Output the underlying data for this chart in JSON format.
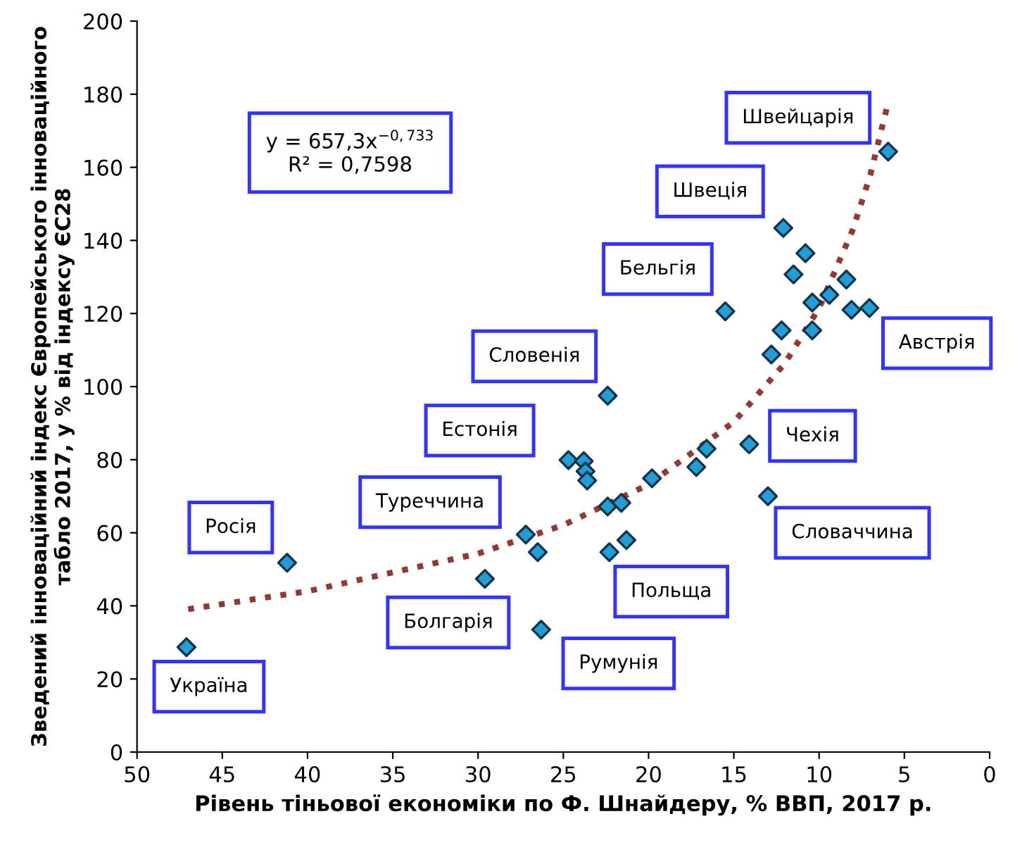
{
  "chart_data": {
    "type": "scatter",
    "xlabel": "Рівень тіньової економіки по Ф. Шнайдеру, % ВВП, 2017 р.",
    "ylabel": "Зведений інноваційний індекс Європейського інноваційного\nтабло 2017, у % від індексу ЄС28",
    "xlim": [
      50,
      0
    ],
    "ylim": [
      0,
      200
    ],
    "xticks": [
      50,
      45,
      40,
      35,
      30,
      25,
      20,
      15,
      10,
      5,
      0
    ],
    "yticks": [
      0,
      20,
      40,
      60,
      80,
      100,
      120,
      140,
      160,
      180,
      200
    ],
    "grid": false,
    "marker": "diamond",
    "series": [
      {
        "color": "#1e9fd8",
        "x": [
          47.1,
          41.2,
          27.2,
          26.5,
          29.6,
          26.3,
          5.95,
          12.1,
          10.8,
          11.5,
          8.4,
          9.4,
          10.4,
          8.1,
          7.05,
          15.5,
          12.2,
          10.4,
          12.8,
          22.4,
          14.1,
          13.0,
          16.6,
          17.2,
          19.8,
          24.7,
          23.8,
          23.7,
          23.6,
          22.4,
          21.6,
          21.3,
          22.3
        ],
        "values": [
          28.7,
          51.8,
          59.5,
          54.7,
          47.4,
          33.5,
          164.3,
          143.4,
          136.5,
          130.7,
          129.3,
          125.1,
          123.0,
          121.0,
          121.5,
          120.6,
          115.4,
          115.4,
          108.8,
          97.5,
          84.2,
          70.0,
          83.0,
          78.0,
          74.9,
          79.9,
          79.6,
          76.8,
          74.3,
          67.2,
          68.2,
          58.0,
          54.7
        ]
      },
      {
        "type": "line",
        "color": "#953735",
        "line_style": "dotted",
        "marker": "none",
        "x": [
          47,
          40,
          30,
          25,
          20,
          15,
          12,
          10,
          8,
          7,
          6
        ],
        "values": [
          39.1,
          44.0,
          54.3,
          62.1,
          73.2,
          90.3,
          106.4,
          121.5,
          143.2,
          157.9,
          176.8
        ]
      }
    ],
    "annotations": [
      "y = 657,3x$^{−0,733}$\nR² = 0,7598",
      {
        "text": "Україна",
        "x": 47.1,
        "y": 28.7
      },
      {
        "text": "Росія",
        "x": 41.2,
        "y": 51.8
      },
      {
        "text": "Туреччина",
        "x": 27.2,
        "y": 59.5
      },
      {
        "text": "Болгарія",
        "x": 29.6,
        "y": 47.4
      },
      {
        "text": "Естонія",
        "x": 24.7,
        "y": 79.9
      },
      {
        "text": "Словенія",
        "x": 22.4,
        "y": 97.5
      },
      {
        "text": "Румунія",
        "x": 26.3,
        "y": 33.5
      },
      {
        "text": "Польща",
        "x": 22.3,
        "y": 54.7
      },
      {
        "text": "Бельгія",
        "x": 15.5,
        "y": 120.6
      },
      {
        "text": "Швеція",
        "x": 12.1,
        "y": 143.4
      },
      {
        "text": "Швейцарія",
        "x": 5.95,
        "y": 164.3
      },
      {
        "text": "Чехія",
        "x": 14.1,
        "y": 84.2
      },
      {
        "text": "Словаччина",
        "x": 13.0,
        "y": 70.0
      },
      {
        "text": "Австрія",
        "x": 7.05,
        "y": 121.5
      }
    ]
  }
}
